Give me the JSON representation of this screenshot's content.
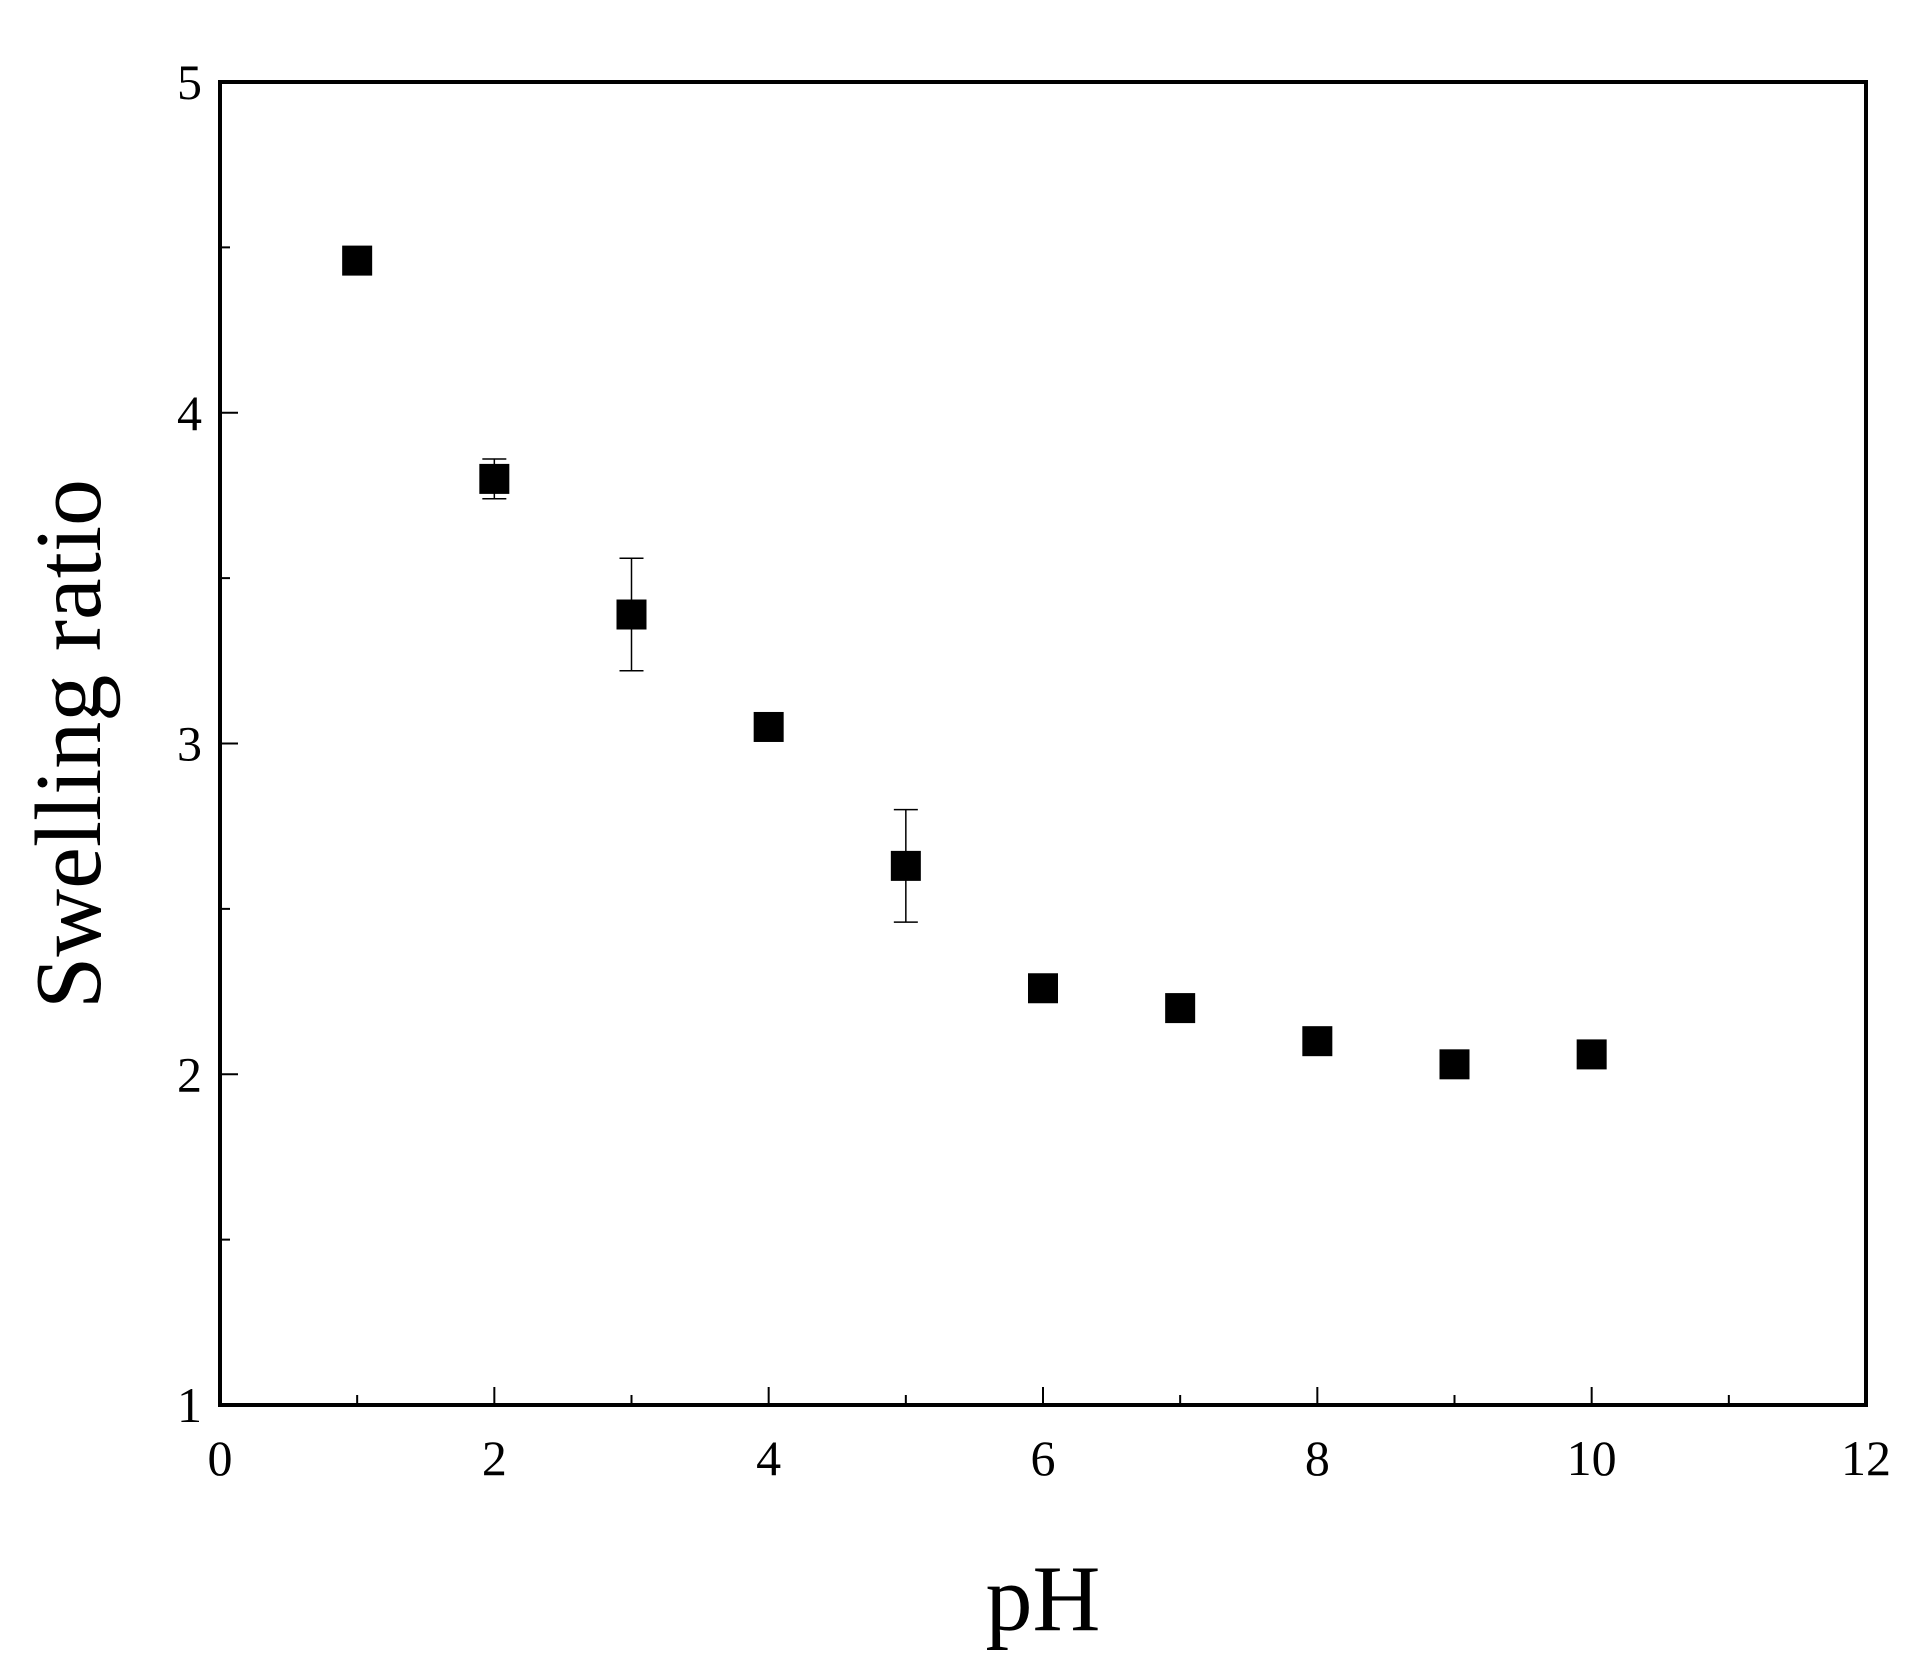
{
  "chart_data": {
    "type": "scatter",
    "x_label": "pH",
    "y_label": "Swelling ratio",
    "x": [
      1,
      2,
      3,
      4,
      5,
      6,
      7,
      8,
      9,
      10
    ],
    "series": [
      {
        "color": "#000000",
        "values": [
          4.46,
          3.8,
          3.39,
          3.05,
          2.63,
          2.26,
          2.2,
          2.1,
          2.03,
          2.06
        ],
        "errors": [
          0.01,
          0.06,
          0.17,
          0.01,
          0.17,
          0.01,
          0.01,
          0.01,
          0.01,
          0.01
        ]
      }
    ],
    "xlim": [
      0,
      12
    ],
    "xticks": [
      0,
      2,
      4,
      6,
      8,
      10,
      12
    ],
    "xminorticks": [
      1,
      3,
      5,
      7,
      9,
      11
    ],
    "ylim": [
      1,
      5
    ],
    "yticks": [
      1,
      2,
      3,
      4,
      5
    ],
    "yminorticks": [
      1.5,
      2.5,
      3.5,
      4.5
    ],
    "grid": false
  }
}
